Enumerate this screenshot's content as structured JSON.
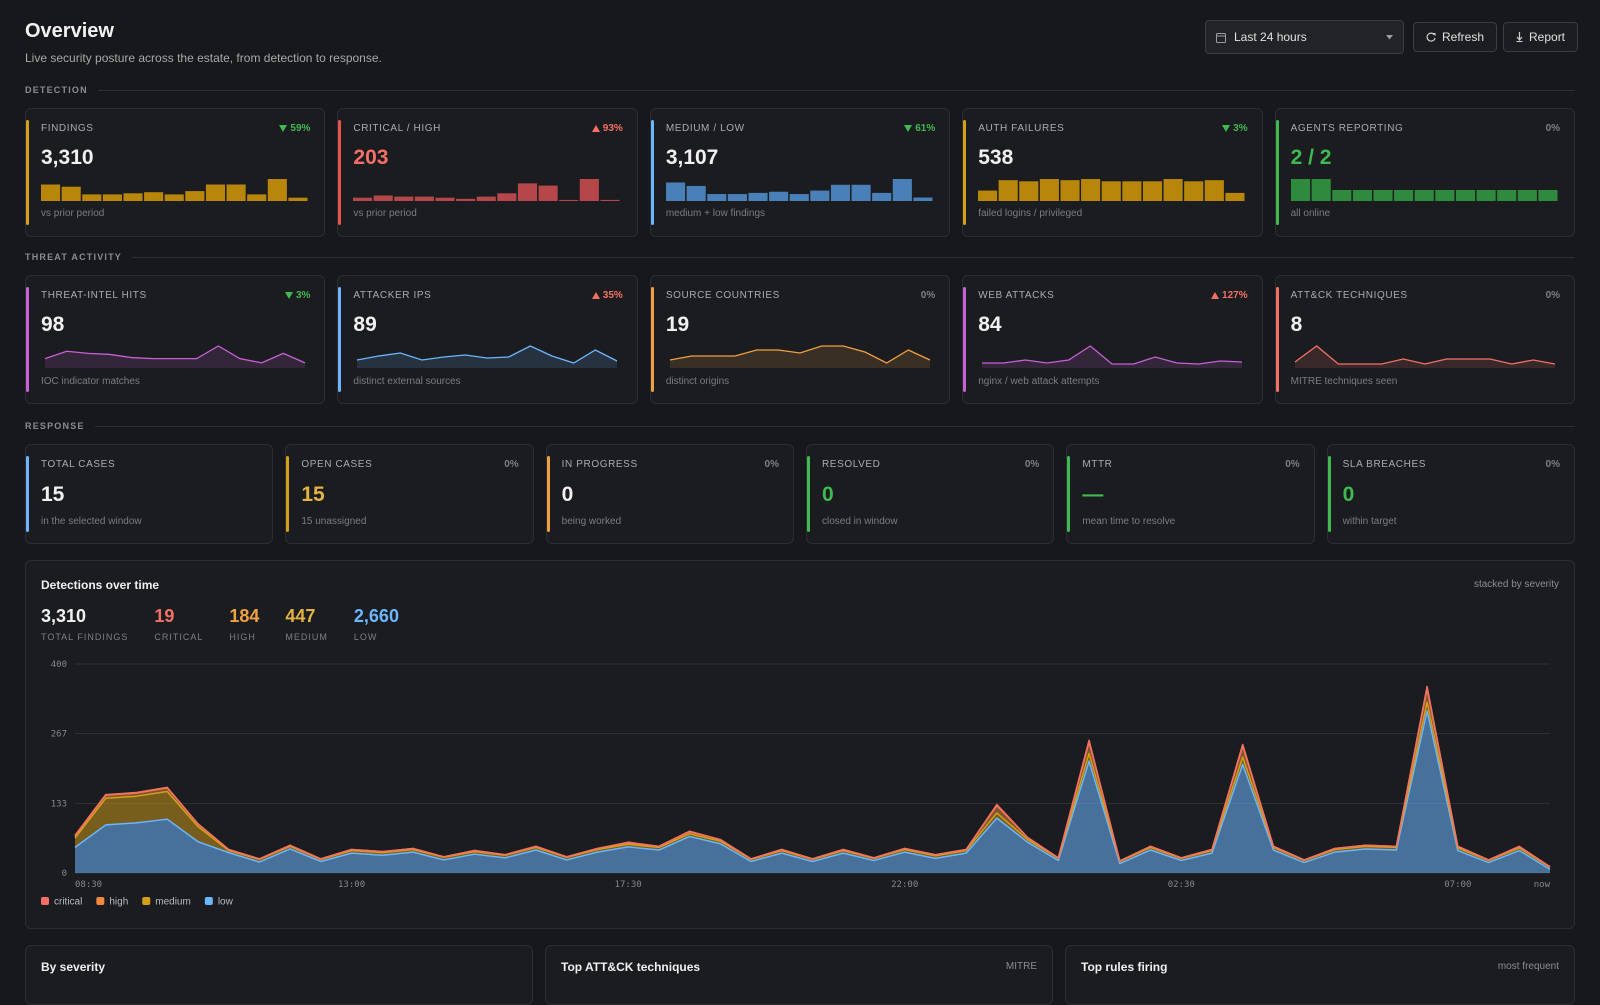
{
  "header": {
    "title": "Overview",
    "subtitle": "Live security posture across the estate, from detection to response.",
    "range": "Last 24 hours",
    "actions": [
      "Refresh",
      "Report"
    ]
  },
  "sections": [
    {
      "label": "DETECTION",
      "cards": [
        {
          "label": "FINDINGS",
          "value": "3,310",
          "delta": "59%",
          "trend": "down",
          "note": "vs prior period",
          "accent": "#d4a017",
          "value_color": "#f0f0f0",
          "spark": {
            "type": "bar",
            "color": "#b8860b",
            "values": [
              15,
              13,
              6,
              6,
              7,
              8,
              6,
              9,
              15,
              15,
              6,
              20,
              3
            ]
          }
        },
        {
          "label": "CRITICAL / HIGH",
          "value": "203",
          "delta": "93%",
          "trend": "up",
          "note": "vs prior period",
          "accent": "#e5534b",
          "value_color": "#f47067",
          "spark": {
            "type": "bar",
            "color": "#b5474b",
            "values": [
              3,
              5,
              4,
              4,
              3,
              2,
              4,
              7,
              16,
              14,
              1,
              20,
              1
            ]
          }
        },
        {
          "label": "MEDIUM / LOW",
          "value": "3,107",
          "delta": "61%",
          "trend": "down",
          "note": "medium + low findings",
          "accent": "#6cb6ff",
          "value_color": "#f0f0f0",
          "spark": {
            "type": "bar",
            "color": "#4a80b8",
            "values": [
              16,
              13,
              6,
              6,
              7,
              8,
              6,
              9,
              14,
              14,
              7,
              19,
              3
            ]
          }
        },
        {
          "label": "AUTH FAILURES",
          "value": "538",
          "delta": "3%",
          "trend": "down",
          "note": "failed logins / privileged",
          "accent": "#d4a017",
          "value_color": "#f0f0f0",
          "spark": {
            "type": "bar",
            "color": "#b8860b",
            "values": [
              9,
              18,
              17,
              19,
              18,
              19,
              17,
              17,
              17,
              19,
              17,
              18,
              7
            ]
          }
        },
        {
          "label": "AGENTS REPORTING",
          "value": "2 / 2",
          "delta": "0%",
          "note": "all online",
          "accent": "#3fb950",
          "value_color": "#3fb950",
          "spark": {
            "type": "bar",
            "color": "#2f8a3e",
            "values": [
              18,
              18,
              9,
              9,
              9,
              9,
              9,
              9,
              9,
              9,
              9,
              9,
              9
            ]
          }
        }
      ]
    },
    {
      "label": "THREAT ACTIVITY",
      "cards": [
        {
          "label": "THREAT-INTEL HITS",
          "value": "98",
          "delta": "3%",
          "trend": "down",
          "note": "IOC indicator matches",
          "accent": "#c860d8",
          "value_color": "#f0f0f0",
          "spark": {
            "type": "line",
            "color": "#c860d8",
            "values": [
              7,
              14,
              12,
              11,
              8,
              7,
              7,
              7,
              19,
              7,
              3,
              12,
              3
            ]
          }
        },
        {
          "label": "ATTACKER IPS",
          "value": "89",
          "delta": "35%",
          "trend": "up",
          "note": "distinct external sources",
          "accent": "#6cb6ff",
          "value_color": "#f0f0f0",
          "spark": {
            "type": "line",
            "color": "#6cb6ff",
            "values": [
              6,
              10,
              13,
              6,
              9,
              11,
              8,
              9,
              20,
              10,
              3,
              16,
              5
            ]
          }
        },
        {
          "label": "SOURCE COUNTRIES",
          "value": "19",
          "delta": "0%",
          "note": "distinct origins",
          "accent": "#f0a040",
          "value_color": "#f0f0f0",
          "spark": {
            "type": "line",
            "color": "#f0a040",
            "values": [
              6,
              10,
              10,
              10,
              16,
              16,
              13,
              20,
              20,
              14,
              3,
              16,
              6
            ]
          }
        },
        {
          "label": "WEB ATTACKS",
          "value": "84",
          "delta": "127%",
          "trend": "up",
          "note": "nginx / web attack attempts",
          "accent": "#c860d8",
          "value_color": "#f0f0f0",
          "spark": {
            "type": "line",
            "color": "#c860d8",
            "values": [
              3,
              3,
              6,
              3,
              6,
              20,
              2,
              2,
              9,
              3,
              2,
              5,
              4
            ]
          }
        },
        {
          "label": "ATT&CK TECHNIQUES",
          "value": "8",
          "delta": "0%",
          "note": "MITRE techniques seen",
          "accent": "#f47067",
          "value_color": "#f0f0f0",
          "spark": {
            "type": "line",
            "color": "#f47067",
            "values": [
              4,
              20,
              2,
              2,
              2,
              7,
              2,
              7,
              7,
              7,
              2,
              6,
              2
            ]
          }
        }
      ]
    },
    {
      "label": "RESPONSE",
      "cards": [
        {
          "label": "TOTAL CASES",
          "value": "15",
          "note": "in the selected window",
          "accent": "#6cb6ff",
          "value_color": "#f0f0f0"
        },
        {
          "label": "OPEN CASES",
          "value": "15",
          "delta": "0%",
          "note": "15 unassigned",
          "accent": "#d4a017",
          "value_color": "#e3b341"
        },
        {
          "label": "IN PROGRESS",
          "value": "0",
          "delta": "0%",
          "note": "being worked",
          "accent": "#f0a040",
          "value_color": "#f0f0f0"
        },
        {
          "label": "RESOLVED",
          "value": "0",
          "delta": "0%",
          "note": "closed in window",
          "accent": "#3fb950",
          "value_color": "#3fb950"
        },
        {
          "label": "MTTR",
          "value": "—",
          "delta": "0%",
          "note": "mean time to resolve",
          "accent": "#3fb950",
          "value_color": "#3fb950"
        },
        {
          "label": "SLA BREACHES",
          "value": "0",
          "delta": "0%",
          "note": "within target",
          "accent": "#3fb950",
          "value_color": "#3fb950"
        }
      ]
    }
  ],
  "chart_data": {
    "type": "area",
    "stacked": true,
    "title": "Detections over time",
    "note": "stacked by severity",
    "summary": [
      {
        "value": "3,310",
        "label": "TOTAL FINDINGS",
        "color": "#f0f0f0"
      },
      {
        "value": "19",
        "label": "CRITICAL",
        "color": "#f47067"
      },
      {
        "value": "184",
        "label": "HIGH",
        "color": "#f0a040"
      },
      {
        "value": "447",
        "label": "MEDIUM",
        "color": "#e3b341"
      },
      {
        "value": "2,660",
        "label": "LOW",
        "color": "#6cb6ff"
      }
    ],
    "categories": [
      "08:30",
      null,
      null,
      null,
      null,
      null,
      null,
      null,
      null,
      "13:00",
      null,
      null,
      null,
      null,
      null,
      null,
      null,
      null,
      "17:30",
      null,
      null,
      null,
      null,
      null,
      null,
      null,
      null,
      "22:00",
      null,
      null,
      null,
      null,
      null,
      null,
      null,
      null,
      "02:30",
      null,
      null,
      null,
      null,
      null,
      null,
      null,
      null,
      "07:00",
      null,
      null,
      "now"
    ],
    "series": [
      {
        "name": "critical",
        "color": "#f47067",
        "values": [
          1,
          1,
          1,
          1,
          0,
          0,
          0,
          0,
          0,
          0,
          0,
          0,
          0,
          0,
          0,
          0,
          0,
          0,
          1,
          0,
          1,
          0,
          0,
          0,
          0,
          0,
          0,
          0,
          0,
          0,
          2,
          0,
          0,
          3,
          0,
          0,
          0,
          0,
          3,
          0,
          0,
          0,
          0,
          0,
          4,
          0,
          0,
          1,
          0
        ]
      },
      {
        "name": "high",
        "color": "#f0883e",
        "values": [
          4,
          6,
          6,
          7,
          5,
          2,
          1,
          2,
          1,
          2,
          2,
          2,
          1,
          2,
          1,
          2,
          1,
          2,
          3,
          2,
          4,
          3,
          1,
          2,
          1,
          2,
          1,
          2,
          2,
          2,
          14,
          4,
          1,
          22,
          1,
          2,
          1,
          2,
          21,
          2,
          1,
          2,
          2,
          2,
          26,
          3,
          1,
          2,
          1
        ]
      },
      {
        "name": "medium",
        "color": "#d4a017",
        "values": [
          18,
          51,
          51,
          53,
          29,
          4,
          5,
          5,
          4,
          5,
          5,
          5,
          5,
          5,
          5,
          5,
          5,
          5,
          5,
          5,
          5,
          5,
          4,
          5,
          4,
          5,
          4,
          5,
          5,
          5,
          10,
          5,
          4,
          15,
          4,
          5,
          4,
          5,
          14,
          5,
          4,
          5,
          5,
          5,
          17,
          5,
          4,
          5,
          4
        ]
      },
      {
        "name": "low",
        "color": "#6cb6ff",
        "values": [
          49,
          92,
          96,
          103,
          60,
          39,
          21,
          46,
          22,
          38,
          34,
          40,
          25,
          36,
          29,
          44,
          25,
          40,
          50,
          44,
          70,
          56,
          22,
          38,
          22,
          38,
          24,
          40,
          28,
          38,
          105,
          59,
          24,
          214,
          18,
          44,
          24,
          38,
          208,
          44,
          20,
          40,
          46,
          44,
          310,
          43,
          20,
          43,
          7
        ]
      }
    ],
    "ylim": [
      0,
      400
    ],
    "yticks": [
      0,
      133,
      267,
      400
    ],
    "grid": true,
    "legend": "bottom-left"
  },
  "panels": [
    {
      "title": "By severity"
    },
    {
      "title": "Top ATT&CK techniques",
      "note": "MITRE"
    },
    {
      "title": "Top rules firing",
      "note": "most frequent"
    }
  ]
}
